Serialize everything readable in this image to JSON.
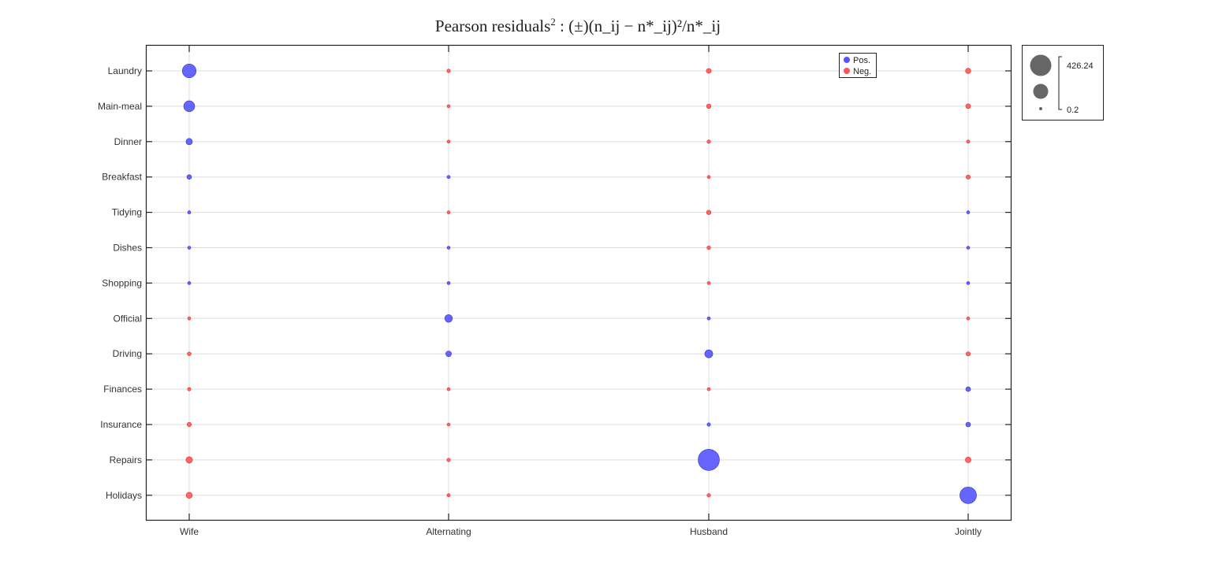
{
  "title": {
    "prefix": "Pearson residuals",
    "sup": "2",
    "formula": " : (±)(n_ij − n*_ij)²/n*_ij"
  },
  "legend": {
    "items": [
      {
        "label": "Pos.",
        "color": "#5555ff"
      },
      {
        "label": "Neg.",
        "color": "#ff5555"
      }
    ]
  },
  "size_legend": {
    "max_label": "426.24",
    "min_label": "0.2",
    "color": "#666666"
  },
  "colors": {
    "positive": "#5555ff",
    "negative": "#ff5555",
    "grid": "#dddddd",
    "axis": "#222222"
  },
  "chart_data": {
    "type": "scatter",
    "subtype": "balloon",
    "title": "Pearson residuals^2 : (±)(n_ij − n*_ij)^2/n*_ij",
    "xlabel": "",
    "ylabel": "",
    "x_categories": [
      "Wife",
      "Alternating",
      "Husband",
      "Jointly"
    ],
    "y_categories": [
      "Laundry",
      "Main-meal",
      "Dinner",
      "Breakfast",
      "Tidying",
      "Dishes",
      "Shopping",
      "Official",
      "Driving",
      "Finances",
      "Insurance",
      "Repairs",
      "Holidays"
    ],
    "size_range": [
      0.2,
      426.24
    ],
    "legend": [
      "Pos.",
      "Neg."
    ],
    "grid": true,
    "values": [
      [
        178,
        -12,
        -23,
        -27
      ],
      [
        112,
        -7,
        -19,
        -22
      ],
      [
        39,
        -4,
        -12,
        -10
      ],
      [
        20,
        10,
        -8,
        -17
      ],
      [
        5,
        -3,
        -19,
        9
      ],
      [
        1,
        2,
        -13,
        7
      ],
      [
        1,
        1,
        -7,
        6
      ],
      [
        -7,
        55,
        0.2,
        -4
      ],
      [
        -14,
        30,
        60,
        -17
      ],
      [
        -11,
        -2,
        -2,
        21
      ],
      [
        -18,
        -8,
        11,
        21
      ],
      [
        -40,
        -12,
        426.24,
        -30
      ],
      [
        -36,
        -10,
        -12,
        260
      ]
    ]
  }
}
